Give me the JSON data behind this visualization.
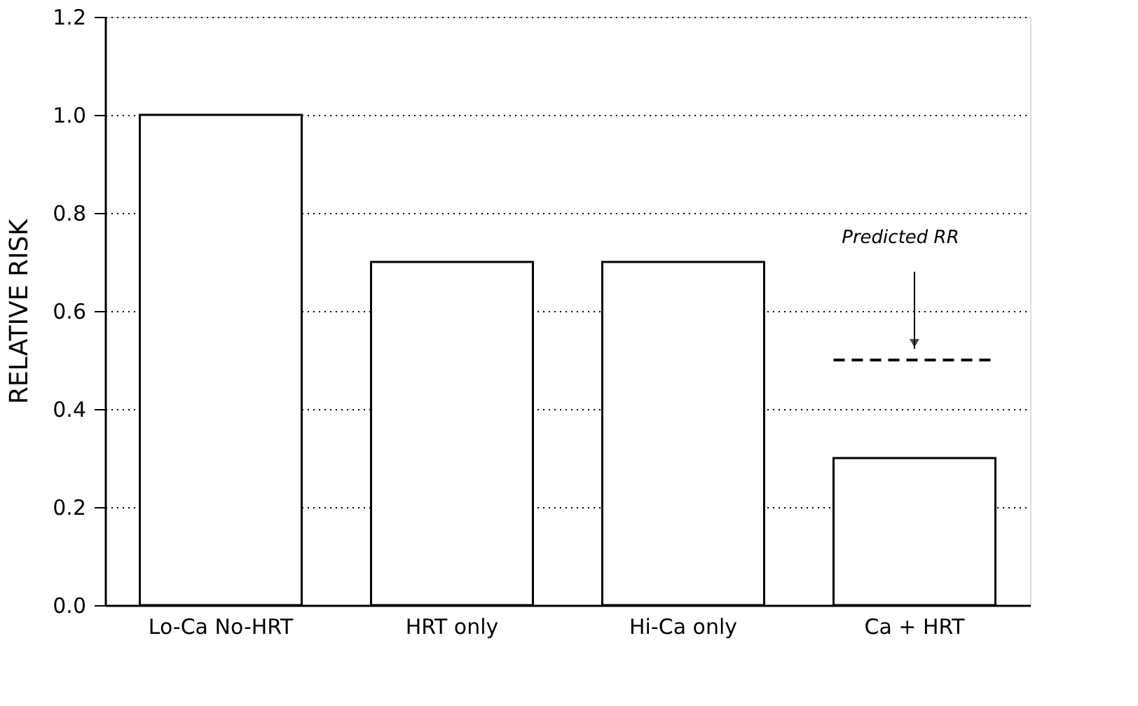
{
  "chart_data": {
    "type": "bar",
    "ylabel": "RELATIVE RISK",
    "categories": [
      "Lo-Ca No-HRT",
      "HRT only",
      "Hi-Ca only",
      "Ca + HRT"
    ],
    "values": [
      1.0,
      0.7,
      0.7,
      0.3
    ],
    "color": "#ffffff",
    "ylim": [
      0,
      1.2
    ],
    "yticks": [
      {
        "value": 0,
        "label": "0.0"
      },
      {
        "value": 0.2,
        "label": "0.2"
      },
      {
        "value": 0.4,
        "label": "0.4"
      },
      {
        "value": 0.6,
        "label": "0.6"
      },
      {
        "value": 0.8,
        "label": "0.8"
      },
      {
        "value": 1.0,
        "label": "1.0"
      },
      {
        "value": 1.2,
        "label": "1.2"
      }
    ],
    "grid": "y",
    "ref_lines": [
      {
        "axis": "y",
        "value": 0.5,
        "label": "Predicted RR",
        "color": "#000000",
        "line_style": "dashed"
      }
    ]
  }
}
